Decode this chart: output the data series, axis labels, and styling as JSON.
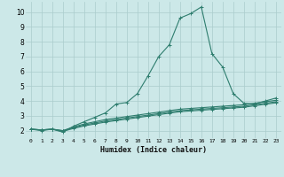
{
  "xlabel": "Humidex (Indice chaleur)",
  "bg_color": "#cce8e8",
  "grid_color": "#aacccc",
  "line_color": "#2e7d6e",
  "xlim": [
    -0.5,
    23.5
  ],
  "ylim": [
    1.5,
    10.7
  ],
  "xticks": [
    0,
    1,
    2,
    3,
    4,
    5,
    6,
    7,
    8,
    9,
    10,
    11,
    12,
    13,
    14,
    15,
    16,
    17,
    18,
    19,
    20,
    21,
    22,
    23
  ],
  "yticks": [
    2,
    3,
    4,
    5,
    6,
    7,
    8,
    9,
    10
  ],
  "series": [
    [
      2.1,
      2.0,
      2.1,
      1.9,
      2.3,
      2.6,
      2.9,
      3.2,
      3.8,
      3.9,
      4.5,
      5.7,
      7.0,
      7.8,
      9.6,
      9.9,
      10.35,
      7.2,
      6.3,
      4.5,
      3.85,
      3.8,
      4.0,
      4.2
    ],
    [
      2.1,
      2.05,
      2.1,
      2.0,
      2.25,
      2.45,
      2.6,
      2.75,
      2.85,
      2.95,
      3.05,
      3.15,
      3.25,
      3.35,
      3.45,
      3.5,
      3.55,
      3.6,
      3.65,
      3.7,
      3.75,
      3.85,
      3.95,
      4.05
    ],
    [
      2.1,
      2.05,
      2.1,
      2.0,
      2.2,
      2.38,
      2.52,
      2.65,
      2.75,
      2.85,
      2.95,
      3.05,
      3.15,
      3.25,
      3.35,
      3.4,
      3.45,
      3.5,
      3.55,
      3.6,
      3.65,
      3.75,
      3.85,
      3.95
    ],
    [
      2.1,
      2.05,
      2.1,
      1.95,
      2.15,
      2.32,
      2.45,
      2.58,
      2.68,
      2.78,
      2.88,
      2.98,
      3.08,
      3.18,
      3.28,
      3.33,
      3.38,
      3.43,
      3.48,
      3.53,
      3.58,
      3.68,
      3.78,
      3.88
    ]
  ]
}
